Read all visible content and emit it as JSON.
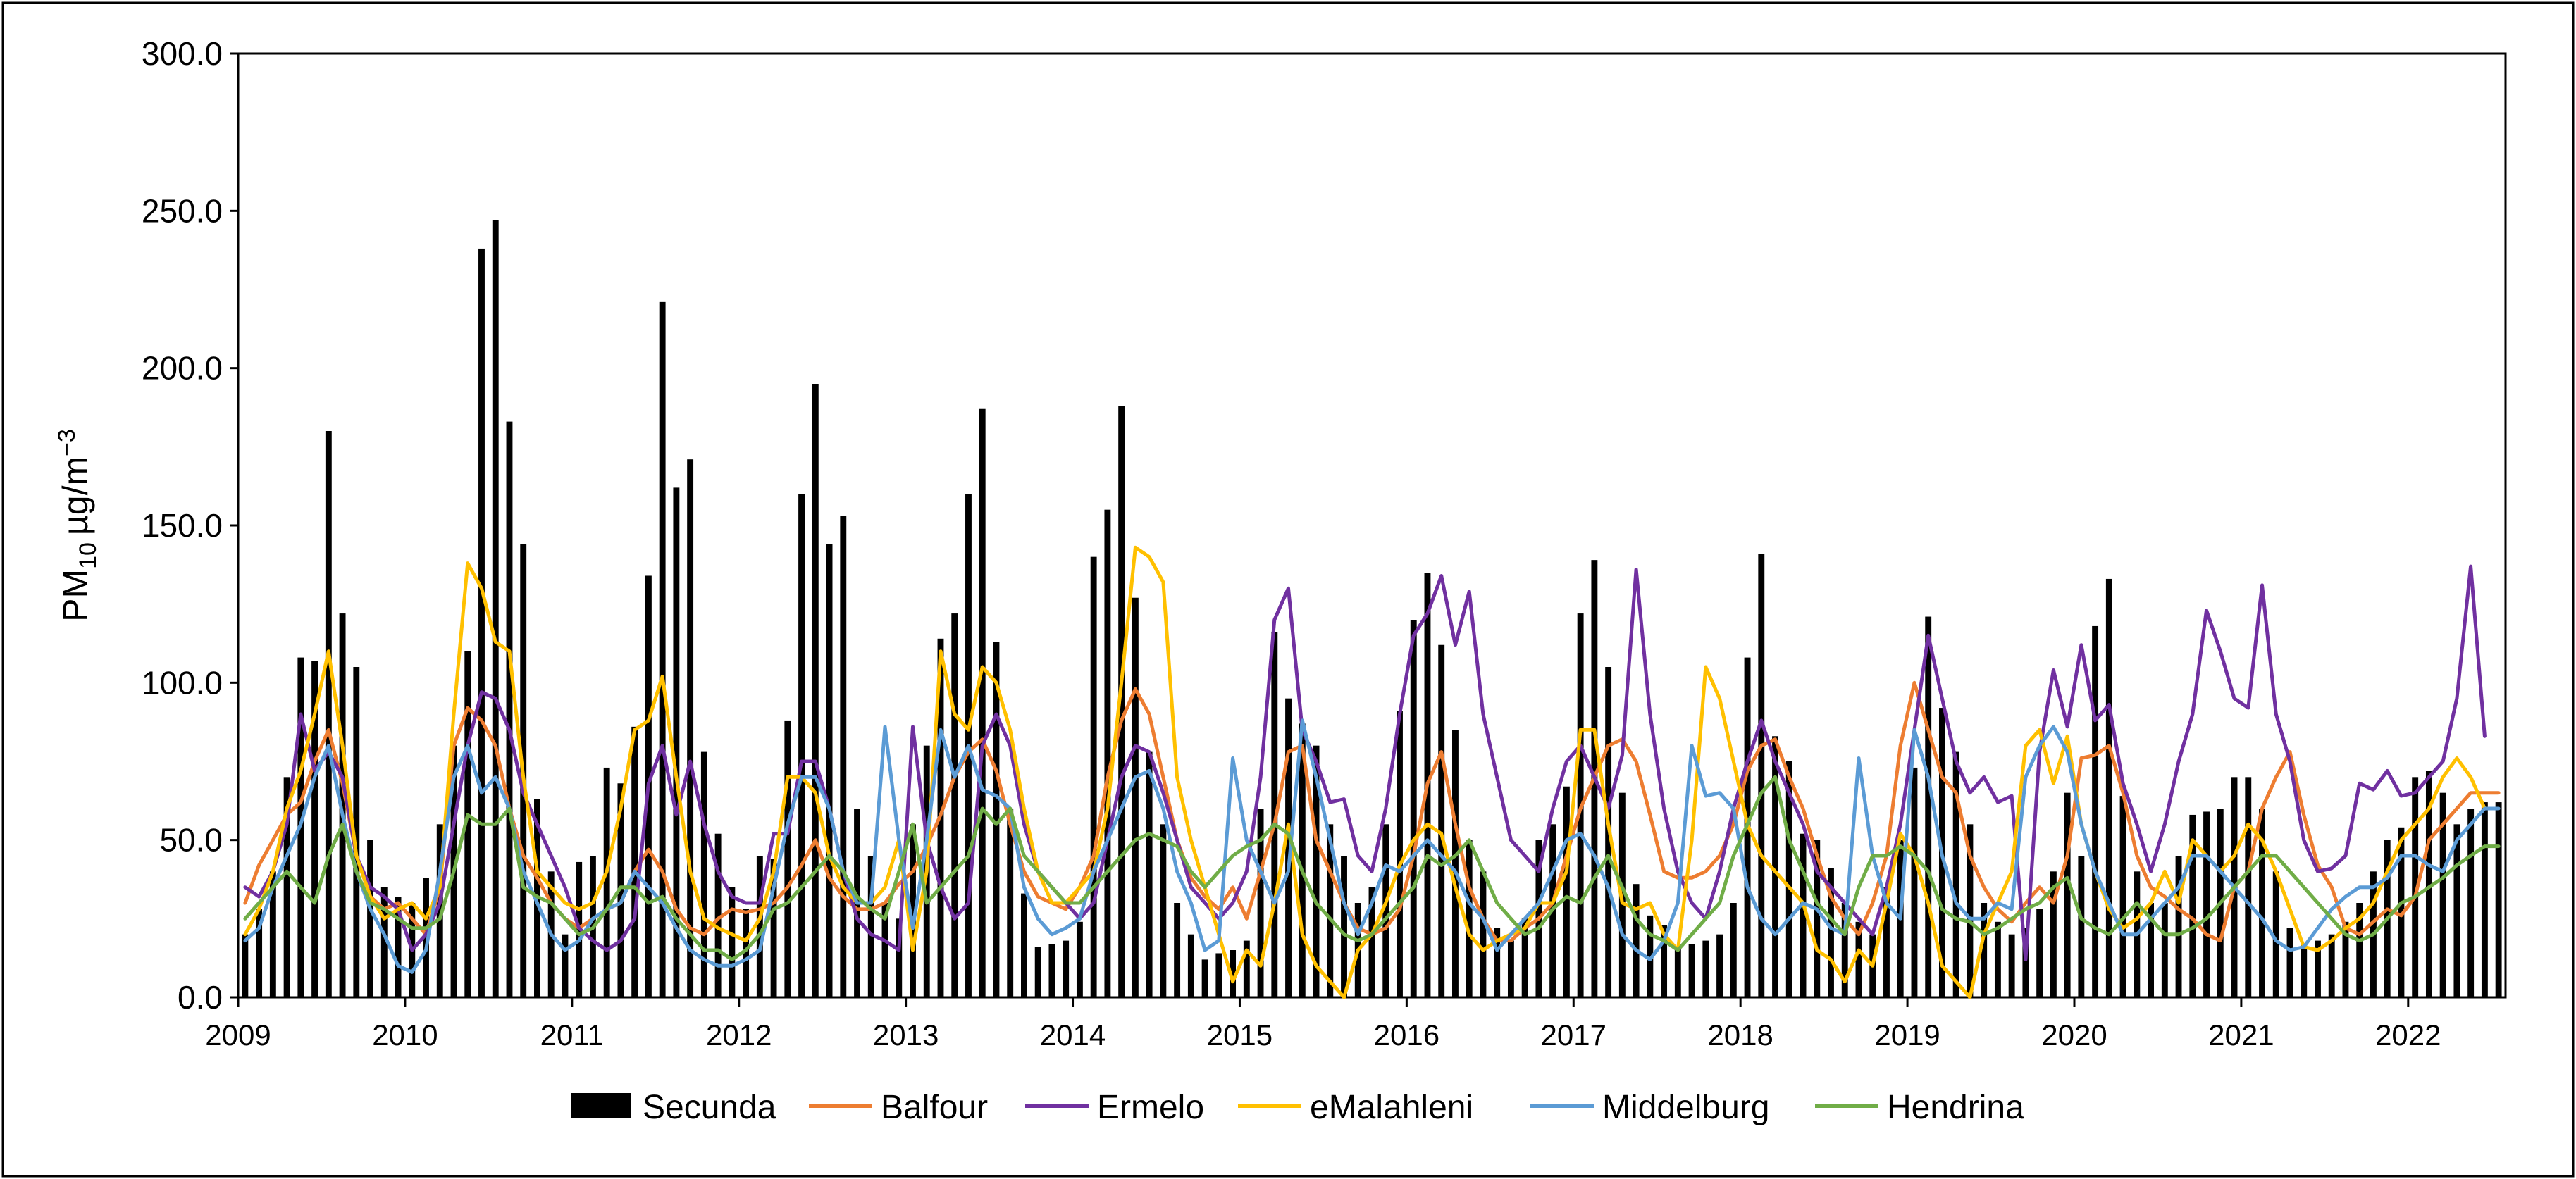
{
  "chart_data": {
    "type": "bar+line",
    "ylabel_main": "PM",
    "ylabel_sub": "10",
    "ylabel_unit": "µg/m",
    "ylabel_sup": "−3",
    "ylim": [
      0,
      300
    ],
    "yticks": [
      "0.0",
      "50.0",
      "100.0",
      "150.0",
      "200.0",
      "250.0",
      "300.0"
    ],
    "xticks": [
      "2009",
      "2010",
      "2011",
      "2012",
      "2013",
      "2014",
      "2015",
      "2016",
      "2017",
      "2018",
      "2019",
      "2020",
      "2021",
      "2022"
    ],
    "start_year": 2009,
    "months": 163,
    "colors": {
      "Secunda": "#000000",
      "Balfour": "#ED7D31",
      "Ermelo": "#7030A0",
      "eMalahleni": "#FFC000",
      "Middelburg": "#5B9BD5",
      "Hendrina": "#70AD47"
    },
    "legend": [
      "Secunda",
      "Balfour",
      "Ermelo",
      "eMalahleni",
      "Middelburg",
      "Hendrina"
    ],
    "series": [
      {
        "name": "Secunda",
        "kind": "bar",
        "values": [
          20,
          28,
          40,
          70,
          108,
          107,
          180,
          122,
          105,
          50,
          35,
          32,
          30,
          38,
          55,
          80,
          110,
          238,
          247,
          183,
          144,
          63,
          40,
          20,
          43,
          45,
          73,
          68,
          86,
          134,
          221,
          162,
          171,
          78,
          52,
          35,
          28,
          45,
          44,
          88,
          160,
          195,
          144,
          153,
          60,
          45,
          30,
          25,
          55,
          80,
          114,
          122,
          160,
          187,
          113,
          60,
          33,
          16,
          17,
          18,
          24,
          140,
          155,
          188,
          127,
          78,
          55,
          30,
          20,
          12,
          14,
          15,
          18,
          60,
          116,
          95,
          87,
          80,
          55,
          45,
          30,
          35,
          55,
          91,
          120,
          135,
          112,
          85,
          50,
          40,
          22,
          18,
          25,
          50,
          55,
          67,
          122,
          139,
          105,
          65,
          36,
          26,
          23,
          16,
          17,
          18,
          20,
          30,
          108,
          141,
          83,
          75,
          52,
          50,
          41,
          30,
          24,
          20,
          35,
          50,
          73,
          121,
          92,
          78,
          55,
          30,
          24,
          20,
          22,
          28,
          40,
          65,
          45,
          118,
          133,
          64,
          40,
          30,
          30,
          45,
          58,
          59,
          60,
          70,
          70,
          60,
          40,
          22,
          17,
          18,
          20,
          24,
          30,
          40,
          50,
          54,
          70,
          72,
          65,
          55,
          60,
          62,
          62
        ]
      },
      {
        "name": "Balfour",
        "kind": "line",
        "values": [
          30,
          42,
          50,
          58,
          62,
          75,
          85,
          68,
          45,
          32,
          28,
          30,
          25,
          20,
          35,
          80,
          92,
          88,
          80,
          60,
          45,
          38,
          30,
          25,
          22,
          25,
          28,
          30,
          40,
          47,
          40,
          28,
          22,
          20,
          25,
          28,
          27,
          28,
          30,
          35,
          42,
          50,
          38,
          32,
          28,
          28,
          30,
          36,
          40,
          48,
          58,
          70,
          78,
          82,
          72,
          55,
          40,
          32,
          30,
          28,
          35,
          45,
          70,
          88,
          98,
          90,
          70,
          50,
          38,
          32,
          28,
          35,
          25,
          40,
          55,
          78,
          80,
          50,
          40,
          30,
          22,
          20,
          22,
          28,
          45,
          68,
          78,
          55,
          35,
          25,
          18,
          18,
          22,
          25,
          30,
          45,
          60,
          70,
          80,
          82,
          75,
          58,
          40,
          38,
          38,
          40,
          45,
          55,
          72,
          80,
          82,
          70,
          60,
          45,
          32,
          25,
          20,
          30,
          45,
          80,
          100,
          85,
          70,
          65,
          45,
          35,
          28,
          24,
          30,
          35,
          30,
          45,
          76,
          77,
          80,
          65,
          45,
          35,
          32,
          28,
          25,
          20,
          18,
          35,
          40,
          60,
          70,
          78,
          58,
          42,
          35,
          22,
          20,
          24,
          28,
          26,
          32,
          50,
          55,
          60,
          65,
          65,
          65
        ]
      },
      {
        "name": "Ermelo",
        "kind": "line",
        "values": [
          35,
          32,
          40,
          55,
          90,
          72,
          78,
          70,
          45,
          35,
          32,
          28,
          15,
          20,
          30,
          55,
          80,
          97,
          95,
          85,
          65,
          55,
          45,
          35,
          22,
          18,
          15,
          18,
          25,
          68,
          80,
          58,
          75,
          55,
          40,
          32,
          30,
          30,
          52,
          52,
          75,
          75,
          60,
          40,
          25,
          20,
          18,
          15,
          86,
          50,
          35,
          25,
          30,
          80,
          90,
          80,
          55,
          40,
          35,
          30,
          25,
          30,
          50,
          70,
          80,
          78,
          65,
          50,
          35,
          30,
          25,
          30,
          40,
          70,
          120,
          130,
          85,
          75,
          62,
          63,
          45,
          40,
          60,
          90,
          115,
          122,
          134,
          112,
          129,
          90,
          70,
          50,
          45,
          40,
          60,
          75,
          80,
          70,
          60,
          77,
          136,
          90,
          60,
          40,
          30,
          25,
          40,
          60,
          75,
          88,
          75,
          65,
          55,
          40,
          35,
          30,
          25,
          20,
          35,
          55,
          85,
          115,
          95,
          75,
          65,
          70,
          62,
          64,
          12,
          78,
          104,
          86,
          112,
          88,
          93,
          68,
          55,
          40,
          55,
          75,
          90,
          123,
          110,
          95,
          92,
          131,
          90,
          75,
          50,
          40,
          41,
          45,
          68,
          66,
          72,
          64,
          65,
          70,
          75,
          95,
          137,
          83
        ]
      },
      {
        "name": "eMalahleni",
        "kind": "line",
        "values": [
          20,
          28,
          40,
          60,
          72,
          90,
          110,
          80,
          45,
          32,
          25,
          28,
          30,
          25,
          35,
          90,
          138,
          130,
          113,
          110,
          70,
          40,
          35,
          30,
          28,
          30,
          40,
          60,
          85,
          88,
          102,
          70,
          40,
          25,
          22,
          20,
          18,
          25,
          40,
          70,
          70,
          65,
          45,
          35,
          30,
          30,
          35,
          50,
          15,
          40,
          110,
          90,
          85,
          105,
          100,
          85,
          60,
          40,
          30,
          30,
          35,
          40,
          60,
          100,
          143,
          140,
          132,
          70,
          50,
          35,
          20,
          5,
          15,
          10,
          30,
          55,
          20,
          10,
          5,
          0,
          15,
          20,
          30,
          42,
          50,
          55,
          52,
          35,
          20,
          15,
          18,
          20,
          22,
          30,
          30,
          40,
          85,
          85,
          55,
          30,
          28,
          30,
          20,
          15,
          50,
          105,
          95,
          75,
          55,
          45,
          40,
          35,
          30,
          15,
          12,
          5,
          15,
          10,
          30,
          52,
          45,
          30,
          10,
          5,
          0,
          20,
          30,
          40,
          80,
          85,
          68,
          83,
          55,
          40,
          28,
          22,
          25,
          30,
          40,
          30,
          50,
          45,
          40,
          45,
          55,
          50,
          40,
          28,
          16,
          15,
          18,
          22,
          25,
          30,
          40,
          50,
          55,
          60,
          70,
          76,
          70,
          60
        ]
      },
      {
        "name": "Middelburg",
        "kind": "line",
        "values": [
          18,
          22,
          35,
          45,
          55,
          70,
          80,
          58,
          40,
          28,
          20,
          10,
          8,
          15,
          40,
          70,
          80,
          65,
          70,
          60,
          40,
          30,
          20,
          15,
          18,
          25,
          28,
          30,
          40,
          35,
          30,
          22,
          15,
          12,
          10,
          10,
          12,
          15,
          35,
          55,
          70,
          70,
          60,
          40,
          30,
          30,
          86,
          50,
          22,
          50,
          85,
          70,
          80,
          66,
          64,
          60,
          35,
          25,
          20,
          22,
          25,
          40,
          50,
          60,
          70,
          72,
          60,
          40,
          30,
          15,
          18,
          76,
          50,
          40,
          30,
          40,
          88,
          70,
          50,
          30,
          20,
          30,
          42,
          40,
          45,
          50,
          45,
          40,
          30,
          25,
          15,
          20,
          25,
          30,
          40,
          50,
          52,
          45,
          35,
          20,
          15,
          12,
          18,
          30,
          80,
          64,
          65,
          60,
          35,
          25,
          20,
          25,
          30,
          28,
          22,
          20,
          76,
          45,
          30,
          25,
          85,
          70,
          45,
          30,
          25,
          25,
          30,
          28,
          70,
          80,
          86,
          78,
          55,
          40,
          30,
          20,
          20,
          25,
          30,
          35,
          45,
          45,
          40,
          35,
          30,
          25,
          18,
          15,
          16,
          22,
          28,
          32,
          35,
          35,
          38,
          45,
          45,
          42,
          40,
          50,
          55,
          60,
          60
        ]
      },
      {
        "name": "Hendrina",
        "kind": "line",
        "values": [
          25,
          30,
          35,
          40,
          35,
          30,
          45,
          55,
          40,
          30,
          28,
          25,
          22,
          22,
          25,
          40,
          58,
          55,
          55,
          60,
          35,
          32,
          30,
          25,
          20,
          22,
          28,
          35,
          35,
          30,
          32,
          25,
          20,
          15,
          15,
          12,
          15,
          20,
          28,
          30,
          35,
          40,
          45,
          40,
          32,
          28,
          25,
          40,
          55,
          30,
          35,
          40,
          45,
          60,
          55,
          60,
          45,
          40,
          35,
          30,
          30,
          35,
          40,
          45,
          50,
          52,
          50,
          48,
          40,
          35,
          40,
          45,
          48,
          50,
          55,
          52,
          40,
          30,
          25,
          20,
          18,
          20,
          25,
          30,
          35,
          45,
          42,
          45,
          50,
          40,
          30,
          25,
          20,
          22,
          28,
          32,
          30,
          38,
          45,
          35,
          25,
          20,
          18,
          15,
          20,
          25,
          30,
          45,
          55,
          65,
          70,
          50,
          40,
          30,
          25,
          20,
          35,
          45,
          45,
          48,
          45,
          40,
          28,
          25,
          24,
          20,
          22,
          25,
          28,
          30,
          35,
          38,
          25,
          22,
          20,
          25,
          30,
          25,
          20,
          20,
          22,
          25,
          30,
          35,
          40,
          45,
          45,
          40,
          35,
          30,
          25,
          20,
          18,
          20,
          25,
          30,
          32,
          35,
          38,
          42,
          45,
          48,
          48
        ]
      }
    ]
  }
}
